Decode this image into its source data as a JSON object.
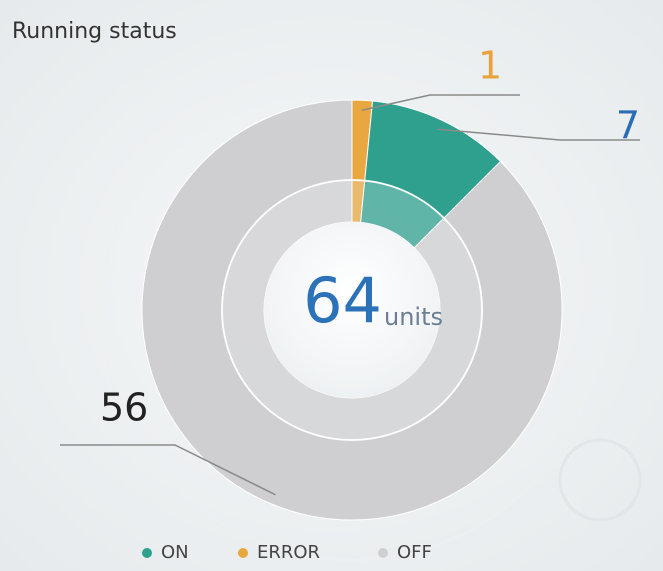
{
  "chart_data": {
    "type": "donut",
    "title": "Running status",
    "categories": [
      "ERROR",
      "ON",
      "OFF"
    ],
    "values": [
      1,
      7,
      56
    ],
    "colors": [
      "#e8a73f",
      "#2fa08e",
      "#cfcfd1"
    ],
    "total": 64,
    "total_unit": "units",
    "legend": {
      "order": [
        1,
        0,
        2
      ],
      "position": "bottom"
    }
  }
}
